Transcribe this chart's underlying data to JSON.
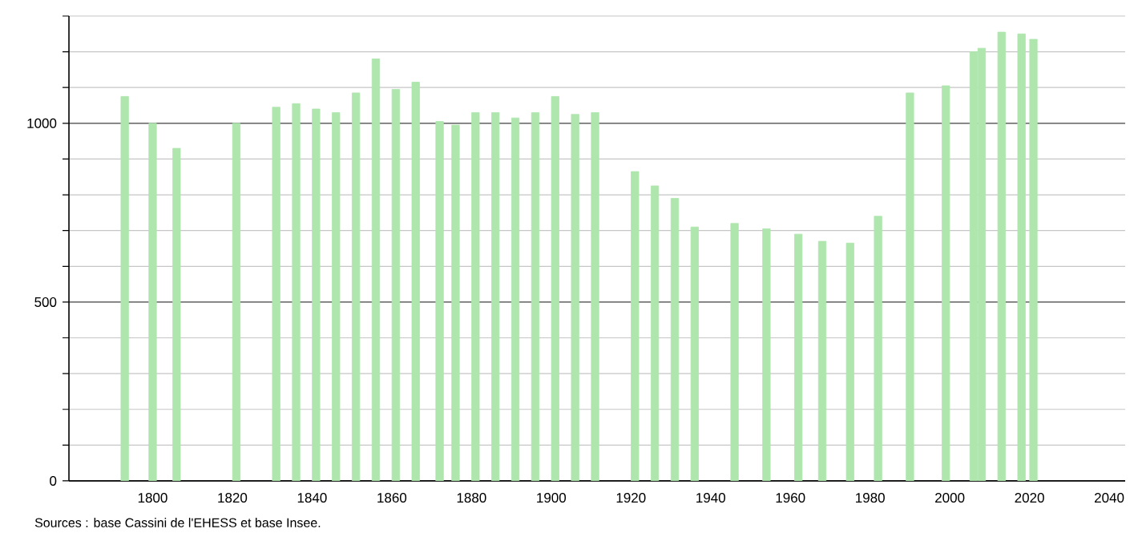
{
  "chart_data": {
    "type": "bar",
    "x": [
      1793,
      1800,
      1806,
      1821,
      1831,
      1836,
      1841,
      1846,
      1851,
      1856,
      1861,
      1866,
      1872,
      1876,
      1881,
      1886,
      1891,
      1896,
      1901,
      1906,
      1911,
      1921,
      1926,
      1931,
      1936,
      1946,
      1954,
      1962,
      1968,
      1975,
      1982,
      1990,
      1999,
      2006,
      2008,
      2013,
      2018,
      2021
    ],
    "values": [
      1075,
      1000,
      930,
      1000,
      1045,
      1055,
      1040,
      1030,
      1085,
      1180,
      1095,
      1115,
      1005,
      995,
      1030,
      1030,
      1015,
      1030,
      1075,
      1025,
      1030,
      865,
      825,
      790,
      710,
      720,
      705,
      690,
      670,
      665,
      740,
      1085,
      1105,
      1200,
      1210,
      1255,
      1250,
      1235
    ],
    "color": "#aee6ae",
    "xlim": [
      1779,
      2044
    ],
    "xticks": [
      1800,
      1820,
      1840,
      1860,
      1880,
      1900,
      1920,
      1940,
      1960,
      1980,
      2000,
      2020,
      2040
    ],
    "ylim": [
      0,
      1300
    ],
    "yticks": [
      0,
      {
        "value": 100,
        "label": null
      },
      {
        "value": 200,
        "label": null
      },
      {
        "value": 300,
        "label": null
      },
      {
        "value": 400,
        "label": null
      },
      500,
      {
        "value": 600,
        "label": null
      },
      {
        "value": 700,
        "label": null
      },
      {
        "value": 800,
        "label": null
      },
      {
        "value": 900,
        "label": null
      },
      1000,
      {
        "value": 1100,
        "label": null
      },
      {
        "value": 1200,
        "label": null
      },
      {
        "value": 1300,
        "label": null
      }
    ],
    "grid": "y",
    "annotations": [
      "Sources : base Cassini de l'EHESS et base Insee."
    ]
  }
}
